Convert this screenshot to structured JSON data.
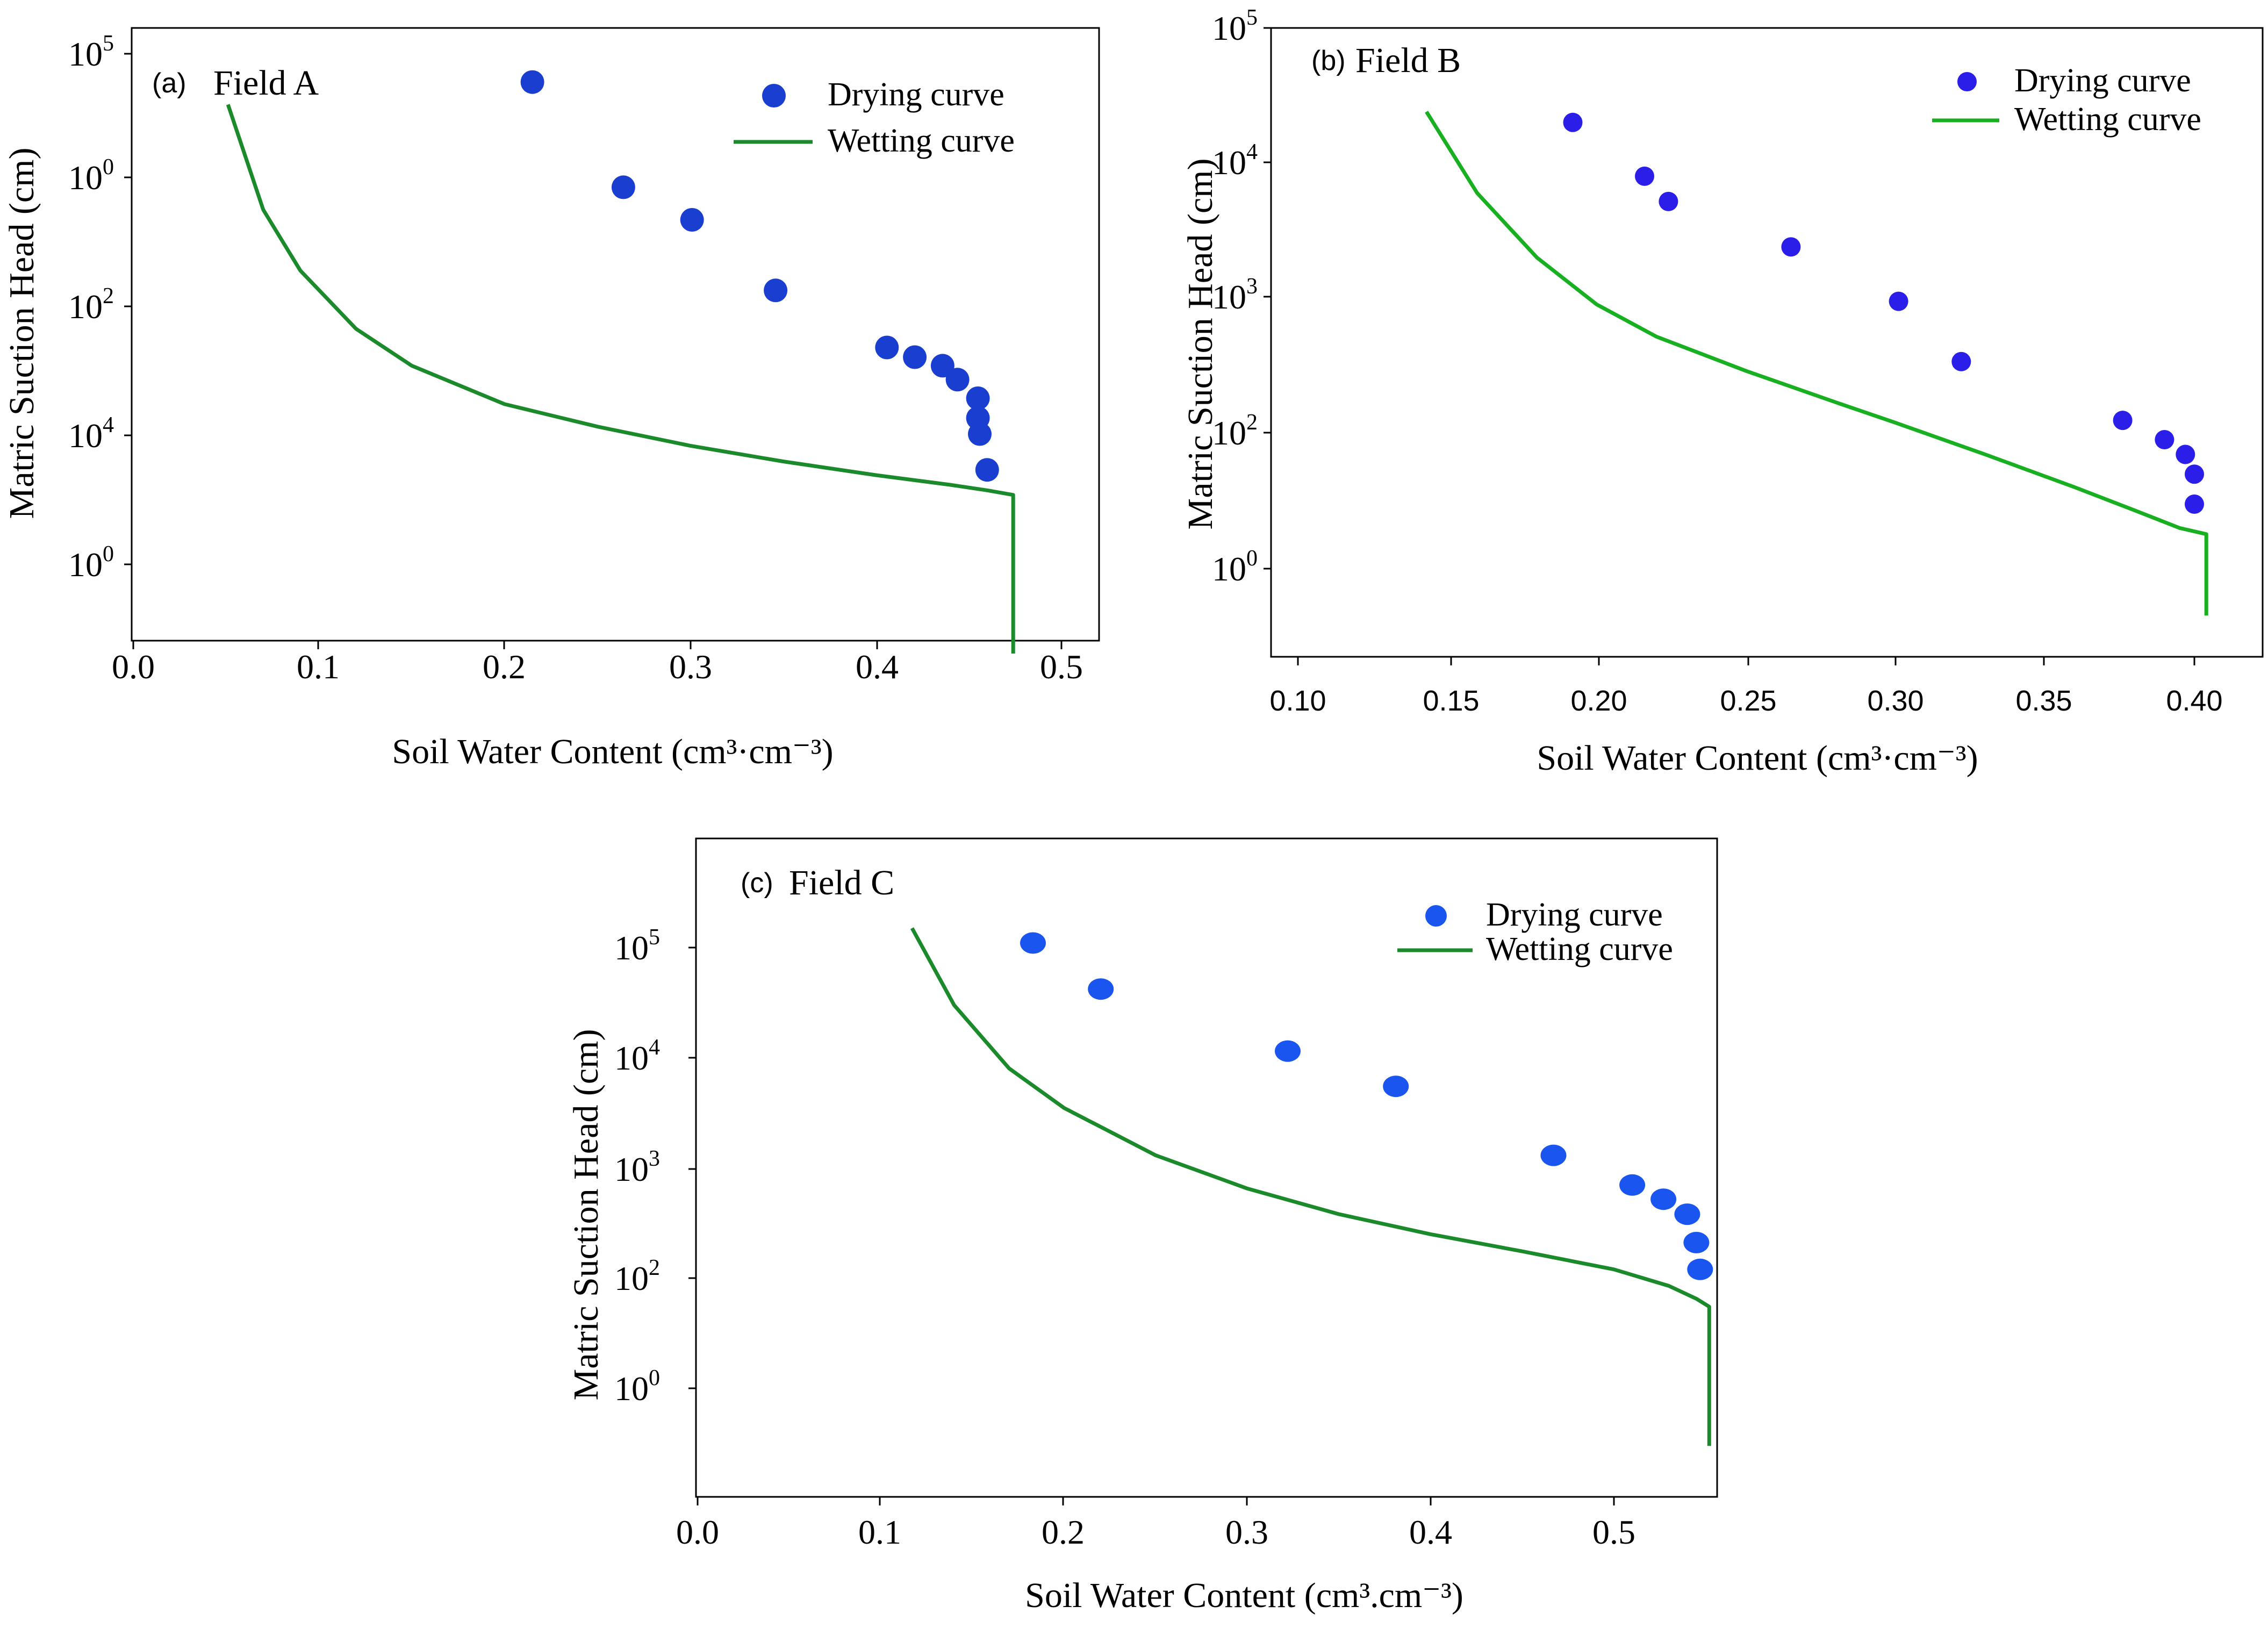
{
  "chart_data": [
    {
      "panel": "a",
      "type": "scatter+line",
      "panel_tag": "(a)",
      "title": "Field A",
      "xlabel": "Soil Water Content",
      "xlabel_unit": "(cm³·cm⁻³)",
      "ylabel": "Matric Suction Head (cm)",
      "xlim": [
        0.0,
        0.53
      ],
      "x_ticks": [
        "0.0",
        "0.1",
        "0.2",
        "0.3",
        "0.4",
        "0.5"
      ],
      "y_tick_labels": [
        {
          "base": "10",
          "exp": "5"
        },
        {
          "base": "10",
          "exp": "0"
        },
        {
          "base": "10",
          "exp": "2"
        },
        {
          "base": "10",
          "exp": "4"
        },
        {
          "base": "10",
          "exp": "0"
        }
      ],
      "y_axis_note": "y tick labels printed as shown in the original figure",
      "series": [
        {
          "name": "Drying curve",
          "kind": "scatter",
          "color": "#1a3fd0",
          "points": [
            [
              0.215,
              60000
            ],
            [
              0.264,
              9000
            ],
            [
              0.301,
              5000
            ],
            [
              0.346,
              1400
            ],
            [
              0.406,
              500
            ],
            [
              0.421,
              420
            ],
            [
              0.436,
              360
            ],
            [
              0.444,
              280
            ],
            [
              0.455,
              200
            ],
            [
              0.455,
              140
            ],
            [
              0.456,
              105
            ],
            [
              0.46,
              55
            ]
          ]
        },
        {
          "name": "Wetting curve",
          "kind": "line",
          "color": "#1a8a2a",
          "points": [
            [
              0.051,
              40000
            ],
            [
              0.07,
              6000
            ],
            [
              0.09,
              2000
            ],
            [
              0.12,
              700
            ],
            [
              0.15,
              360
            ],
            [
              0.2,
              180
            ],
            [
              0.25,
              120
            ],
            [
              0.3,
              85
            ],
            [
              0.35,
              64
            ],
            [
              0.4,
              50
            ],
            [
              0.44,
              42
            ],
            [
              0.46,
              38
            ],
            [
              0.474,
              35
            ],
            [
              0.474,
              2
            ]
          ]
        }
      ]
    },
    {
      "panel": "b",
      "type": "scatter+line",
      "panel_tag": "(b)",
      "title": "Field B",
      "xlabel": "Soil Water Content",
      "xlabel_unit": "(cm³·cm⁻³)",
      "ylabel": "Matric Suction Head (cm)",
      "xlim": [
        0.1,
        0.41
      ],
      "x_ticks": [
        "0.10",
        "0.15",
        "0.20",
        "0.25",
        "0.30",
        "0.35",
        "0.40"
      ],
      "y_tick_labels": [
        {
          "base": "10",
          "exp": "5"
        },
        {
          "base": "10",
          "exp": "4"
        },
        {
          "base": "10",
          "exp": "3"
        },
        {
          "base": "10",
          "exp": "2"
        },
        {
          "base": "10",
          "exp": "0"
        }
      ],
      "y_axis_note": "y tick labels printed as shown in the original figure",
      "series": [
        {
          "name": "Drying curve",
          "kind": "scatter",
          "color": "#2a1ee8",
          "points": [
            [
              0.192,
              20000
            ],
            [
              0.216,
              8000
            ],
            [
              0.224,
              5200
            ],
            [
              0.265,
              2400
            ],
            [
              0.301,
              950
            ],
            [
              0.322,
              340
            ],
            [
              0.376,
              125
            ],
            [
              0.39,
              90
            ],
            [
              0.397,
              70
            ],
            [
              0.4,
              50
            ],
            [
              0.4,
              30
            ]
          ]
        },
        {
          "name": "Wetting curve",
          "kind": "line",
          "color": "#18b020",
          "points": [
            [
              0.143,
              24000
            ],
            [
              0.16,
              6000
            ],
            [
              0.18,
              2000
            ],
            [
              0.2,
              900
            ],
            [
              0.22,
              520
            ],
            [
              0.25,
              290
            ],
            [
              0.28,
              170
            ],
            [
              0.3,
              120
            ],
            [
              0.33,
              70
            ],
            [
              0.36,
              40
            ],
            [
              0.38,
              27
            ],
            [
              0.395,
              20
            ],
            [
              0.404,
              18
            ],
            [
              0.404,
              4.5
            ]
          ]
        }
      ]
    },
    {
      "panel": "c",
      "type": "scatter+line",
      "panel_tag": "(c)",
      "title": "Field C",
      "xlabel": "Soil Water Content",
      "xlabel_unit": "(cm³.cm⁻³)",
      "ylabel": "Matric Suction Head (cm)",
      "xlim": [
        0.0,
        0.57
      ],
      "x_ticks": [
        "0.0",
        "0.1",
        "0.2",
        "0.3",
        "0.4",
        "0.5"
      ],
      "y_tick_labels": [
        {
          "base": "10",
          "exp": "5"
        },
        {
          "base": "10",
          "exp": "4"
        },
        {
          "base": "10",
          "exp": "3"
        },
        {
          "base": "10",
          "exp": "2"
        },
        {
          "base": "10",
          "exp": "0"
        }
      ],
      "y_axis_note": "y tick labels printed as shown in the original figure",
      "series": [
        {
          "name": "Drying curve",
          "kind": "scatter",
          "color": "#1a55f0",
          "points": [
            [
              0.183,
              110000
            ],
            [
              0.22,
              42000
            ],
            [
              0.322,
              11500
            ],
            [
              0.381,
              5500
            ],
            [
              0.467,
              1300
            ],
            [
              0.51,
              700
            ],
            [
              0.527,
              520
            ],
            [
              0.54,
              380
            ],
            [
              0.545,
              210
            ],
            [
              0.547,
              120
            ]
          ]
        },
        {
          "name": "Wetting curve",
          "kind": "line",
          "color": "#1a8a2a",
          "points": [
            [
              0.117,
              150000
            ],
            [
              0.14,
              30000
            ],
            [
              0.17,
              8000
            ],
            [
              0.2,
              3500
            ],
            [
              0.25,
              1300
            ],
            [
              0.3,
              650
            ],
            [
              0.35,
              380
            ],
            [
              0.4,
              250
            ],
            [
              0.45,
              175
            ],
            [
              0.5,
              120
            ],
            [
              0.53,
              85
            ],
            [
              0.545,
              65
            ],
            [
              0.552,
              55
            ],
            [
              0.552,
              3
            ]
          ]
        }
      ]
    }
  ]
}
